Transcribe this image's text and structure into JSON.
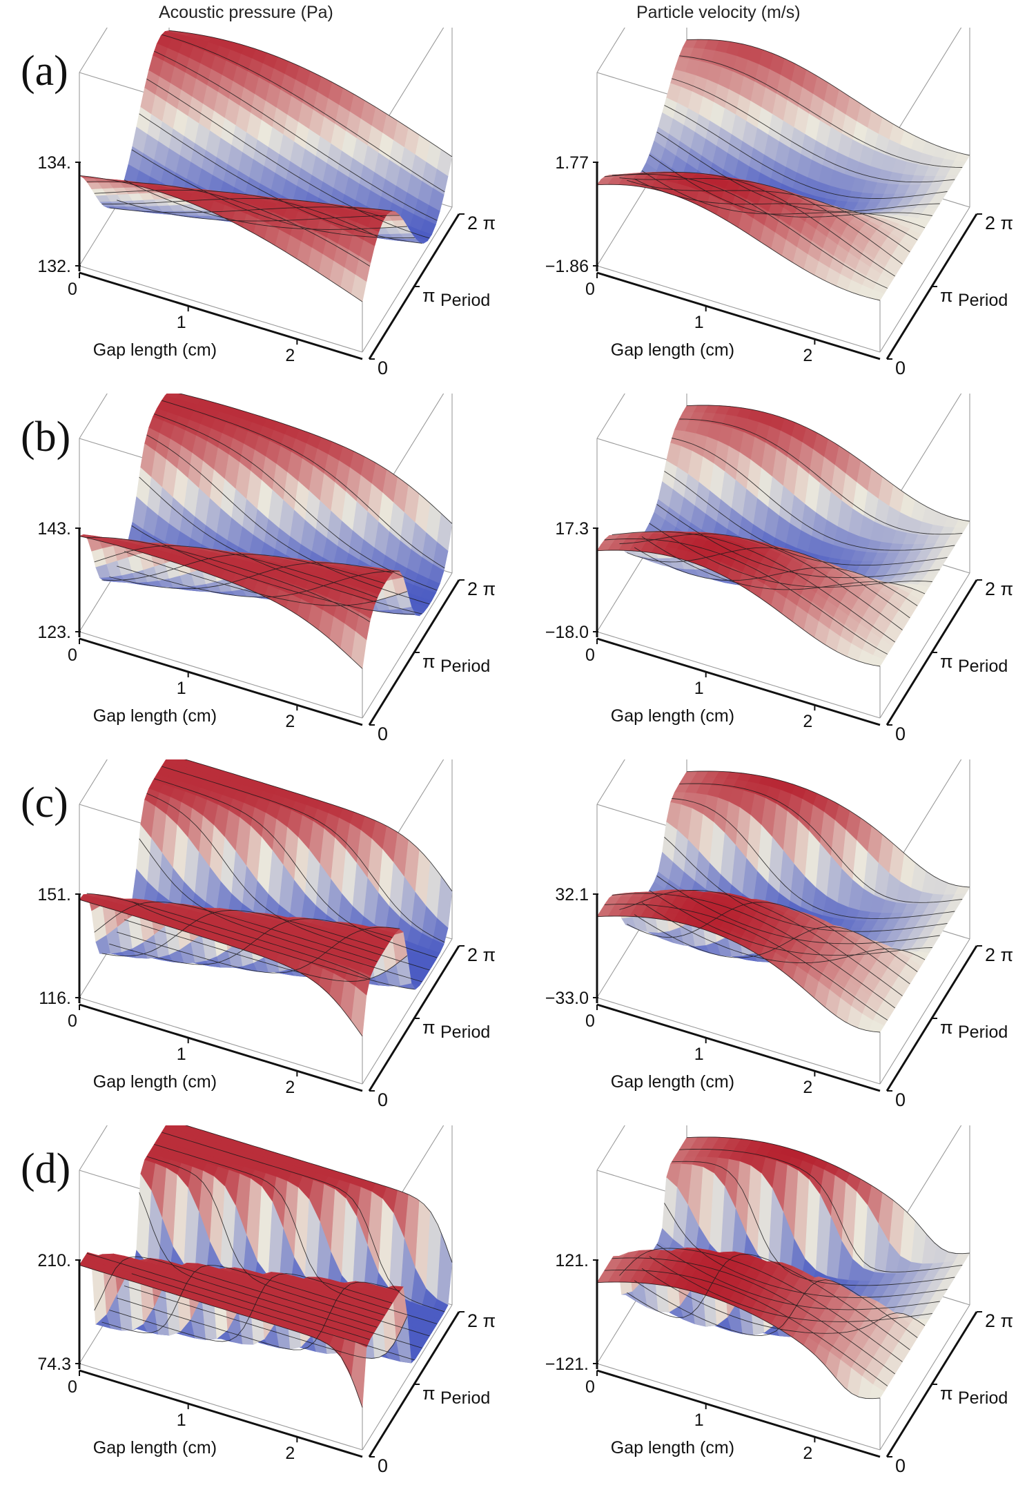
{
  "column_titles": [
    "Acoustic pressure (Pa)",
    "Particle velocity (m/s)"
  ],
  "chart_data": [
    {
      "type": "surface3d",
      "panel": "(a)",
      "quantity": "Acoustic pressure (Pa)",
      "zlabel": "",
      "xlabel": "Gap length (cm)",
      "ylabel": "Period",
      "z_ticks": [
        "134.",
        "132."
      ],
      "zlim": [
        132.0,
        134.0
      ],
      "x_ticks": [
        "0",
        "1",
        "2"
      ],
      "y_ticks": [
        "0",
        "π",
        "2 π"
      ],
      "colormap": "blue-white-red"
    },
    {
      "type": "surface3d",
      "panel": "(a)",
      "quantity": "Particle velocity (m/s)",
      "zlabel": "",
      "xlabel": "Gap length (cm)",
      "ylabel": "Period",
      "z_ticks": [
        "1.77",
        "−1.86"
      ],
      "zlim": [
        -1.86,
        1.77
      ],
      "x_ticks": [
        "0",
        "1",
        "2"
      ],
      "y_ticks": [
        "0",
        "π",
        "2 π"
      ],
      "colormap": "blue-white-red"
    },
    {
      "type": "surface3d",
      "panel": "(b)",
      "quantity": "Acoustic pressure (Pa)",
      "zlabel": "",
      "xlabel": "Gap length (cm)",
      "ylabel": "Period",
      "z_ticks": [
        "143.",
        "123."
      ],
      "zlim": [
        123.0,
        143.0
      ],
      "x_ticks": [
        "0",
        "1",
        "2"
      ],
      "y_ticks": [
        "0",
        "π",
        "2 π"
      ],
      "colormap": "blue-white-red"
    },
    {
      "type": "surface3d",
      "panel": "(b)",
      "quantity": "Particle velocity (m/s)",
      "zlabel": "",
      "xlabel": "Gap length (cm)",
      "ylabel": "Period",
      "z_ticks": [
        "17.3",
        "−18.0"
      ],
      "zlim": [
        -18.0,
        17.3
      ],
      "x_ticks": [
        "0",
        "1",
        "2"
      ],
      "y_ticks": [
        "0",
        "π",
        "2 π"
      ],
      "colormap": "blue-white-red"
    },
    {
      "type": "surface3d",
      "panel": "(c)",
      "quantity": "Acoustic pressure (Pa)",
      "zlabel": "",
      "xlabel": "Gap length (cm)",
      "ylabel": "Period",
      "z_ticks": [
        "151.",
        "116."
      ],
      "zlim": [
        116.0,
        151.0
      ],
      "x_ticks": [
        "0",
        "1",
        "2"
      ],
      "y_ticks": [
        "0",
        "π",
        "2 π"
      ],
      "colormap": "blue-white-red"
    },
    {
      "type": "surface3d",
      "panel": "(c)",
      "quantity": "Particle velocity (m/s)",
      "zlabel": "",
      "xlabel": "Gap length (cm)",
      "ylabel": "Period",
      "z_ticks": [
        "32.1",
        "−33.0"
      ],
      "zlim": [
        -33.0,
        32.1
      ],
      "x_ticks": [
        "0",
        "1",
        "2"
      ],
      "y_ticks": [
        "0",
        "π",
        "2 π"
      ],
      "colormap": "blue-white-red"
    },
    {
      "type": "surface3d",
      "panel": "(d)",
      "quantity": "Acoustic pressure (Pa)",
      "zlabel": "",
      "xlabel": "Gap length (cm)",
      "ylabel": "Period",
      "z_ticks": [
        "210.",
        "74.3"
      ],
      "zlim": [
        74.3,
        210.0
      ],
      "x_ticks": [
        "0",
        "1",
        "2"
      ],
      "y_ticks": [
        "0",
        "π",
        "2 π"
      ],
      "colormap": "blue-white-red"
    },
    {
      "type": "surface3d",
      "panel": "(d)",
      "quantity": "Particle velocity (m/s)",
      "zlabel": "",
      "xlabel": "Gap length (cm)",
      "ylabel": "Period",
      "z_ticks": [
        "121.",
        "−121."
      ],
      "zlim": [
        -121.0,
        121.0
      ],
      "x_ticks": [
        "0",
        "1",
        "2"
      ],
      "y_ticks": [
        "0",
        "π",
        "2 π"
      ],
      "colormap": "blue-white-red"
    }
  ]
}
